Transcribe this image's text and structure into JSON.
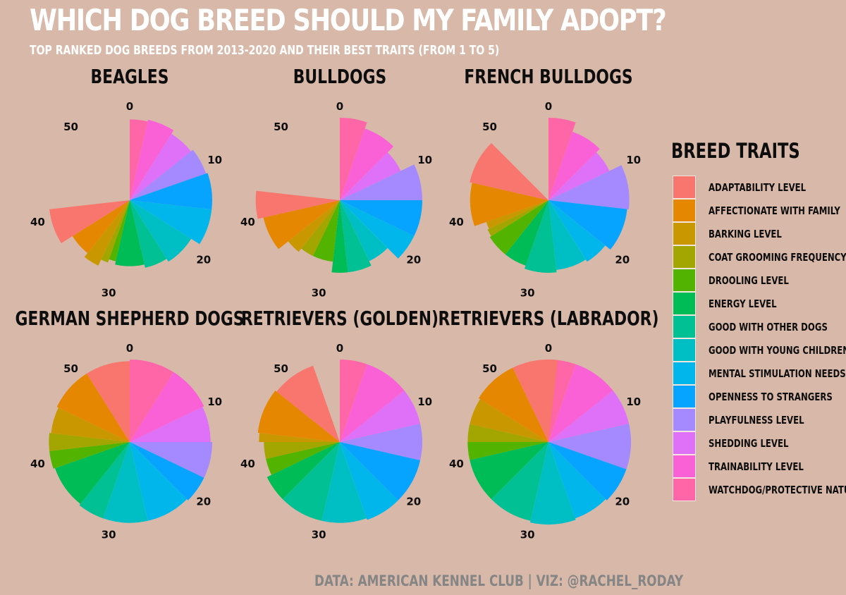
{
  "title": "WHICH DOG BREED SHOULD MY FAMILY ADOPT?",
  "subtitle": "TOP RANKED DOG BREEDS FROM 2013-2020 AND THEIR BEST TRAITS (FROM 1 TO 5)",
  "caption": "DATA: AMERICAN KENNEL CLUB | VIZ: @RACHEL_RODAY",
  "legend": {
    "title": "BREED TRAITS",
    "items": [
      {
        "label": "ADAPTABILITY LEVEL",
        "color": "#f8766d"
      },
      {
        "label": "AFFECTIONATE WITH FAMILY",
        "color": "#e58700"
      },
      {
        "label": "BARKING LEVEL",
        "color": "#c99800"
      },
      {
        "label": "COAT GROOMING FREQUENCY",
        "color": "#a3a500"
      },
      {
        "label": "DROOLING LEVEL",
        "color": "#53b400"
      },
      {
        "label": "ENERGY LEVEL",
        "color": "#00bc56"
      },
      {
        "label": "GOOD WITH OTHER DOGS",
        "color": "#00c094"
      },
      {
        "label": "GOOD WITH YOUNG CHILDREN",
        "color": "#00bfc4"
      },
      {
        "label": "MENTAL STIMULATION NEEDS",
        "color": "#00b6eb"
      },
      {
        "label": "OPENNESS TO STRANGERS",
        "color": "#06a4ff"
      },
      {
        "label": "PLAYFULNESS LEVEL",
        "color": "#a58aff"
      },
      {
        "label": "SHEDDING LEVEL",
        "color": "#df70f8"
      },
      {
        "label": "TRAINABILITY LEVEL",
        "color": "#fb61d7"
      },
      {
        "label": "WATCHDOG/PROTECTIVE NATURE",
        "color": "#ff66a8"
      }
    ]
  },
  "chart_data": {
    "type": "bar",
    "coord": "polar",
    "theta_ticks": [
      "0",
      "10",
      "20",
      "30",
      "40",
      "50"
    ],
    "theta_range": [
      0,
      56
    ],
    "value_range": [
      1,
      5
    ],
    "order": "traits stacked clockwise from 0 in reverse legend order (WATCHDOG/PROTECTIVE NATURE first, ADAPTABILITY LEVEL last); angular width = trait score",
    "panels": [
      {
        "title": "BEAGLES",
        "values": [
          4,
          3,
          2,
          1,
          1,
          4,
          3,
          4,
          4,
          4,
          3,
          3,
          3,
          2
        ],
        "radii": [
          0.98,
          0.82,
          0.88,
          0.8,
          0.76,
          0.8,
          0.84,
          0.88,
          1.0,
          1.0,
          0.98,
          0.95,
          1.0,
          0.98
        ]
      },
      {
        "title": "BULLDOGS",
        "values": [
          3,
          4,
          2,
          2,
          3,
          2,
          3,
          3,
          3,
          4,
          4,
          3,
          4,
          3
        ],
        "radii": [
          1.02,
          0.95,
          0.8,
          0.75,
          0.75,
          0.88,
          0.88,
          0.82,
          1.0,
          1.0,
          1.0,
          0.82,
          0.92,
          1.0
        ]
      },
      {
        "title": "FRENCH BULLDOGS",
        "values": [
          5,
          5,
          1,
          1,
          3,
          3,
          4,
          4,
          3,
          5,
          5,
          3,
          4,
          3
        ],
        "radii": [
          0.98,
          0.95,
          0.8,
          0.82,
          0.84,
          0.84,
          0.88,
          0.85,
          0.88,
          0.96,
          0.98,
          0.82,
          0.88,
          1.0
        ]
      },
      {
        "title": "GERMAN SHEPHERD DOGS",
        "values": [
          5,
          5,
          3,
          2,
          2,
          5,
          3,
          5,
          5,
          3,
          4,
          4,
          5,
          5
        ],
        "radii": [
          0.98,
          0.98,
          0.96,
          0.98,
          0.98,
          0.96,
          0.98,
          0.98,
          0.98,
          1.0,
          1.0,
          0.98,
          1.0,
          1.0
        ]
      },
      {
        "title": "RETRIEVERS (GOLDEN)",
        "values": [
          5,
          5,
          1,
          2,
          2,
          3,
          5,
          5,
          4,
          5,
          4,
          4,
          5,
          3
        ],
        "radii": [
          0.98,
          1.0,
          0.98,
          0.92,
          0.92,
          0.98,
          0.98,
          0.98,
          1.0,
          1.0,
          1.0,
          1.0,
          1.0,
          1.0
        ]
      },
      {
        "title": "RETRIEVERS (LABRADOR)",
        "values": [
          5,
          5,
          3,
          2,
          2,
          5,
          5,
          5,
          4,
          4,
          5,
          4,
          5,
          3
        ],
        "radii": [
          1.0,
          1.0,
          0.98,
          0.98,
          0.98,
          0.98,
          0.98,
          1.0,
          0.98,
          1.0,
          1.0,
          1.0,
          1.0,
          1.0
        ]
      }
    ]
  }
}
